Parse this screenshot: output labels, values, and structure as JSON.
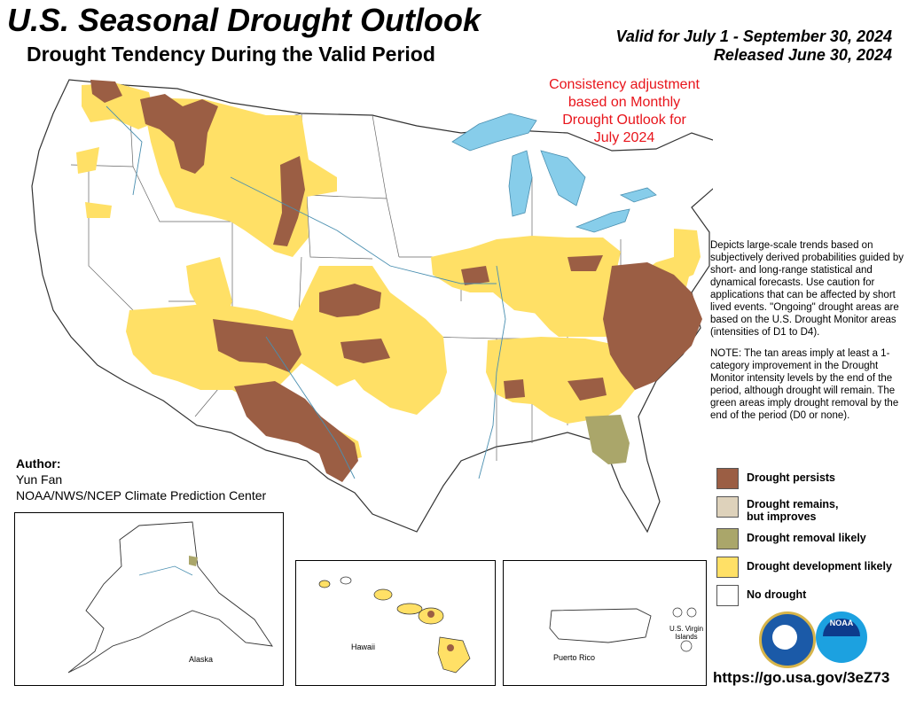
{
  "header": {
    "title": "U.S. Seasonal Drought Outlook",
    "subtitle": "Drought Tendency During the Valid Period",
    "valid": "Valid for July 1 - September 30, 2024",
    "released": "Released June 30, 2024"
  },
  "consistency_note": [
    "Consistency adjustment",
    "based on Monthly",
    "Drought Outlook for",
    "July 2024"
  ],
  "description": {
    "p1": "Depicts large-scale trends based on subjectively derived probabilities guided by short- and long-range statistical and dynamical forecasts. Use caution for applications that can be affected by short lived events. \"Ongoing\" drought areas are based on the U.S. Drought Monitor areas (intensities of D1 to D4).",
    "p2": "NOTE: The tan areas imply at least a 1-category improvement in the Drought Monitor intensity levels by the end of the period, although drought will remain. The green areas imply drought removal by the end of the period (D0 or none)."
  },
  "author": {
    "label": "Author:",
    "name": "Yun Fan",
    "org": "NOAA/NWS/NCEP Climate Prediction Center"
  },
  "legend": [
    {
      "label": "Drought persists",
      "color": "#9b5e44"
    },
    {
      "label": "Drought remains, but improves",
      "color": "#ded2bb"
    },
    {
      "label": "Drought removal likely",
      "color": "#aaa66a"
    },
    {
      "label": "Drought development likely",
      "color": "#ffe066"
    },
    {
      "label": "No drought",
      "color": "#ffffff"
    }
  ],
  "insets": {
    "alaska": "Alaska",
    "hawaii": "Hawaii",
    "puerto_rico": "Puerto Rico",
    "virgin_islands": "U.S. Virgin Islands"
  },
  "logos": [
    "commerce-seal-icon",
    "noaa-logo-icon"
  ],
  "logo_text": {
    "noaa": "NOAA"
  },
  "url": "https://go.usa.gov/3eZ73",
  "colors": {
    "persists": "#9b5e44",
    "development": "#ffe066",
    "removal": "#aaa66a",
    "water": "#87cdea",
    "consistency_text": "#e8141b"
  }
}
